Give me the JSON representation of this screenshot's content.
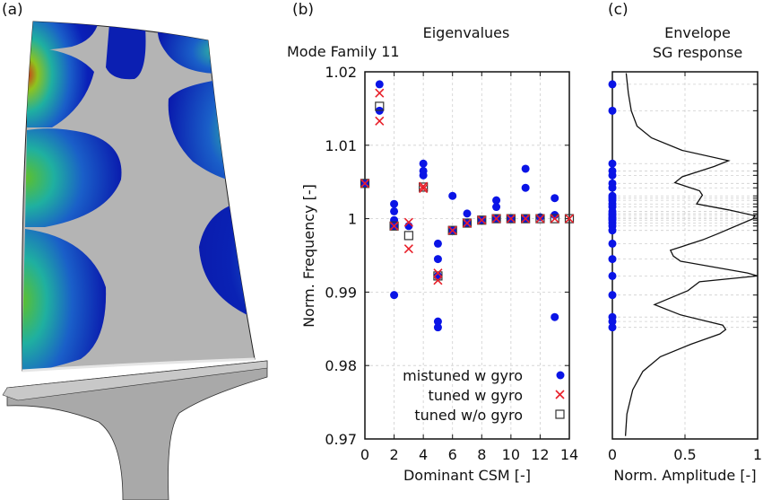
{
  "panels": {
    "a": {
      "label": "(a)"
    },
    "b": {
      "label": "(b)",
      "title": "Eigenvalues",
      "subtitle": "Mode Family 11"
    },
    "c": {
      "label": "(c)",
      "title_line1": "Envelope",
      "title_line2": "SG response"
    }
  },
  "colors": {
    "mistuned": "#0a14e6",
    "tuned_gyro": "#e8202a",
    "tuned_no_gyro": "#333333",
    "envelope": "#111111",
    "grid": "#cfcfcf"
  },
  "chart_data": [
    {
      "type": "scatter",
      "title": "Eigenvalues",
      "subtitle": "Mode Family 11",
      "xlabel": "Dominant CSM [-]",
      "ylabel": "Norm. Frequency [-]",
      "xlim": [
        0,
        14
      ],
      "ylim": [
        0.97,
        1.02
      ],
      "xticks": [
        "0",
        "2",
        "4",
        "6",
        "8",
        "10",
        "12",
        "14"
      ],
      "yticks": [
        "0.97",
        "0.98",
        "0.99",
        "1",
        "1.01",
        "1.02"
      ],
      "grid": true,
      "legend_position": "bottom-right",
      "series": [
        {
          "name": "mistuned w gyro",
          "marker": "circle",
          "x": [
            0,
            1,
            1,
            2,
            2,
            2,
            2,
            2,
            3,
            4,
            4,
            4,
            5,
            5,
            5,
            5,
            5,
            6,
            6,
            7,
            7,
            8,
            9,
            9,
            9,
            10,
            11,
            11,
            11,
            12,
            13,
            13,
            13
          ],
          "y": [
            1.0048,
            1.0183,
            1.0147,
            1.002,
            1.001,
            0.9998,
            0.999,
            0.9896,
            0.999,
            1.0075,
            1.0065,
            1.0059,
            0.9966,
            0.9945,
            0.9922,
            0.986,
            0.9852,
            1.0031,
            0.9984,
            1.0007,
            0.9994,
            0.9998,
            1.0025,
            1.0016,
            1.0,
            1.0,
            1.0068,
            1.0042,
            1.0,
            1.0002,
            1.0028,
            1.0005,
            0.9866
          ]
        },
        {
          "name": "tuned w gyro",
          "marker": "x",
          "x": [
            0,
            1,
            1,
            2,
            3,
            3,
            4,
            4,
            5,
            5,
            6,
            7,
            8,
            9,
            10,
            11,
            12,
            13,
            14
          ],
          "y": [
            1.0048,
            1.0171,
            1.0133,
            0.999,
            0.9995,
            0.9959,
            1.0044,
            1.0041,
            0.9926,
            0.9916,
            0.9984,
            0.9994,
            0.9998,
            1.0,
            1.0,
            1.0,
            1.0,
            1.0,
            1.0
          ]
        },
        {
          "name": "tuned w/o gyro",
          "marker": "square",
          "x": [
            0,
            1,
            2,
            3,
            4,
            5,
            6,
            7,
            8,
            9,
            10,
            11,
            12,
            13,
            14
          ],
          "y": [
            1.0048,
            1.0153,
            0.999,
            0.9977,
            1.0043,
            0.9922,
            0.9984,
            0.9994,
            0.9998,
            1.0,
            1.0,
            1.0,
            1.0,
            1.0,
            1.0
          ]
        }
      ]
    },
    {
      "type": "line",
      "title": "Envelope SG response",
      "xlabel": "Norm. Amplitude [-]",
      "xlim": [
        0,
        1
      ],
      "ylim": [
        0.97,
        1.02
      ],
      "xticks": [
        "0",
        "0.5",
        "1"
      ],
      "grid": true,
      "envelope": {
        "amplitude": [
          0.095,
          0.11,
          0.13,
          0.17,
          0.27,
          0.48,
          0.8,
          0.7,
          0.48,
          0.43,
          0.6,
          0.62,
          0.58,
          0.8,
          0.98,
          0.97,
          0.72,
          0.62,
          0.4,
          0.42,
          0.47,
          0.93,
          1.0,
          0.6,
          0.52,
          0.29,
          0.47,
          0.76,
          0.78,
          0.74,
          0.54,
          0.33,
          0.21,
          0.14,
          0.1,
          0.09
        ],
        "frequency": [
          1.0198,
          1.0171,
          1.0147,
          1.0126,
          1.011,
          1.0093,
          1.0079,
          1.0071,
          1.0057,
          1.0049,
          1.0038,
          1.0032,
          1.002,
          1.0012,
          1.0004,
          1.0,
          0.9979,
          0.9971,
          0.9957,
          0.9949,
          0.9942,
          0.9926,
          0.9922,
          0.9914,
          0.9902,
          0.9883,
          0.9869,
          0.9855,
          0.9849,
          0.9843,
          0.9829,
          0.9812,
          0.9792,
          0.9767,
          0.9734,
          0.9704
        ]
      },
      "mistuned_frequencies_at_zero": [
        1.0183,
        1.0147,
        1.0075,
        1.0065,
        1.0059,
        1.0048,
        1.0042,
        1.0031,
        1.0028,
        1.0025,
        1.002,
        1.0016,
        1.001,
        1.0007,
        1.0005,
        1.0002,
        1.0,
        0.9998,
        0.9994,
        0.999,
        0.9984,
        0.9966,
        0.9945,
        0.9922,
        0.9896,
        0.9866,
        0.986,
        0.9852
      ]
    }
  ]
}
